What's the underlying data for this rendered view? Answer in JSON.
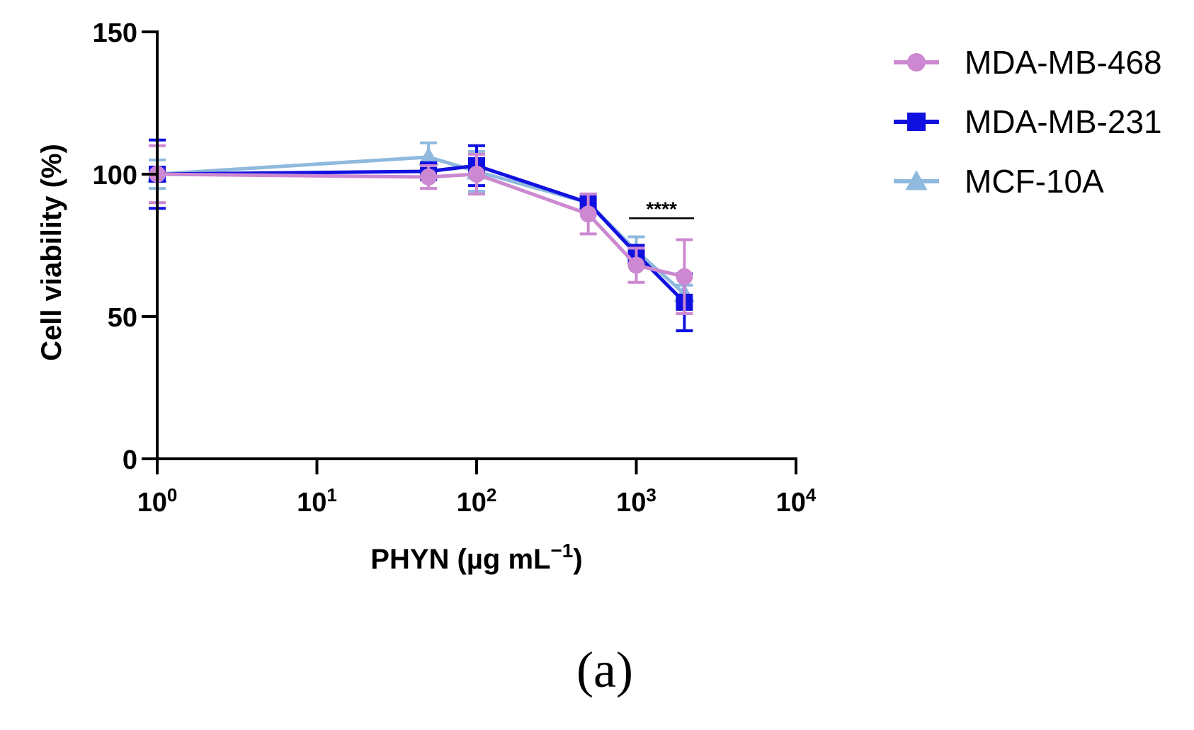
{
  "chart_data": {
    "type": "line",
    "title": "",
    "xlabel": "PHYN (µg mL",
    "xlabel_sup": "−1",
    "xlabel_close": ")",
    "ylabel": "Cell viability (%)",
    "xscale": "log",
    "xlim": [
      1,
      10000
    ],
    "ylim": [
      0,
      150
    ],
    "x_ticks": [
      1,
      10,
      100,
      1000,
      10000
    ],
    "x_tick_labels": [
      {
        "base": "10",
        "exp": "0"
      },
      {
        "base": "10",
        "exp": "1"
      },
      {
        "base": "10",
        "exp": "2"
      },
      {
        "base": "10",
        "exp": "3"
      },
      {
        "base": "10",
        "exp": "4"
      }
    ],
    "y_ticks": [
      0,
      50,
      100,
      150
    ],
    "y_tick_labels": [
      "0",
      "50",
      "100",
      "150"
    ],
    "grid": false,
    "legend_position": "top-right",
    "series": [
      {
        "name": "MCF-10A",
        "color": "#8fb9dd",
        "marker": "triangle",
        "x": [
          1,
          50,
          100,
          500,
          1000,
          2000
        ],
        "y": [
          100,
          106,
          101,
          90,
          73,
          58
        ],
        "err": [
          5,
          5,
          7,
          3,
          5,
          3
        ]
      },
      {
        "name": "MDA-MB-231",
        "color": "#1010e0",
        "marker": "square",
        "x": [
          1,
          50,
          100,
          500,
          1000,
          2000
        ],
        "y": [
          100,
          101,
          103,
          90,
          72,
          55
        ],
        "err": [
          12,
          3,
          7,
          3,
          3,
          10
        ]
      },
      {
        "name": "MDA-MB-468",
        "color": "#cc88d0",
        "marker": "circle",
        "x": [
          1,
          50,
          100,
          500,
          1000,
          2000
        ],
        "y": [
          100,
          99,
          100,
          86,
          68,
          64
        ],
        "err": [
          10,
          4,
          7,
          7,
          6,
          13
        ]
      }
    ],
    "legend_order": [
      "MDA-MB-468",
      "MDA-MB-231",
      "MCF-10A"
    ],
    "annotations": [
      {
        "text": "****",
        "x_start": 900,
        "x_end": 2300,
        "y": 84.5
      }
    ],
    "panel_label": "(a)"
  }
}
